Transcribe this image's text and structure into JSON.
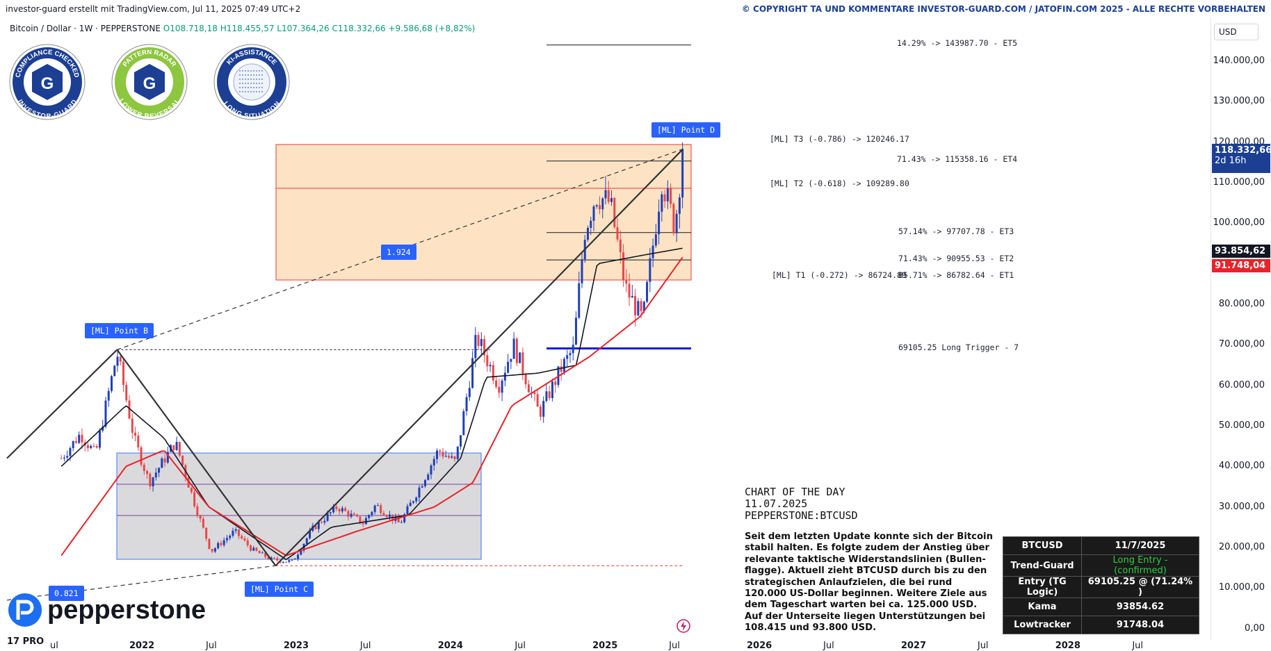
{
  "header": {
    "left": "investor-guard erstellt mit TradingView.com, Jul 11, 2025 07:49 UTC+2",
    "right": "© COPYRIGHT TA UND KOMMENTARE INVESTOR-GUARD.COM / JATOFIN.COM 2025 - ALLE RECHTE VORBEHALTEN"
  },
  "symbol": {
    "name": "Bitcoin / Dollar · 1W · PEPPERSTONE",
    "open": "O108.718,18",
    "high": "H118.455,57",
    "low": "L107.364,26",
    "close": "C118.332,66",
    "change": "+9.586,68 (+8,82%)"
  },
  "badges": [
    {
      "top": "COMPLIANCE CHECKED",
      "bottom": "INVESTOR-GUARD",
      "color": "#1c3f94"
    },
    {
      "top": "PATTERN RADAR",
      "bottom": "LOWER REVERSAL",
      "color": "#8dc63f"
    },
    {
      "top": "KI-ASSISTANCE",
      "bottom": "LONG SITUATION",
      "color": "#1c3f94"
    }
  ],
  "annotations": {
    "et5": "14.29% -> 143987.70 - ET5",
    "t3": "[ML] T3 (-0.786) -> 120246.17",
    "et4": "71.43% -> 115358.16 - ET4",
    "t2": "[ML] T2 (-0.618) -> 109289.80",
    "et3": "57.14% -> 97707.78 - ET3",
    "et2": "71.43% -> 90955.53 - ET2",
    "t1": "[ML] T1 (-0.272) -> 86724.89",
    "et1": "85.71% -> 86782.64 - ET1",
    "trigger": "69105.25  Long Trigger - 7",
    "point_b": "[ML] Point  B",
    "point_c": "[ML] Point  C",
    "point_d": "[ML] Point  D",
    "ratio1": "1.924",
    "ratio2": "0.821"
  },
  "cotd": {
    "title": "CHART OF THE DAY",
    "date": "11.07.2025",
    "ticker": "PEPPERSTONE:BTCUSD",
    "text": "Seit dem letzten Update konnte sich der Bitcoin stabil halten. Es folgte zudem der Anstieg über relevante taktische Widerstandslinien (Bullen-flagge). Aktuell zieht BTCUSD durch bis zu den strategischen Anlaufzielen, die bei rund 120.000 US-Dollar beginnen. Weitere Ziele aus dem Tageschart warten bei ca. 125.000 USD. Auf der Unterseite liegen Unterstützungen bei 108.415 und 93.800 USD."
  },
  "table": [
    [
      "BTCUSD",
      "11/7/2025"
    ],
    [
      "Trend-Guard",
      "Long Entry - (confirmed)"
    ],
    [
      "Entry (TG Logic)",
      "69105.25 @ (71.24% )"
    ],
    [
      "Kama",
      "93854.62"
    ],
    [
      "Lowtracker",
      "91748.04"
    ]
  ],
  "y_axis": {
    "currency": "USD",
    "labels": [
      "140.000,00",
      "130.000,00",
      "120.000,00",
      "110.000,00",
      "100.000,00",
      "90.000,00",
      "80.000,00",
      "70.000,00",
      "60.000,00",
      "50.000,00",
      "40.000,00",
      "30.000,00",
      "20.000,00",
      "10.000,00",
      "0,00"
    ],
    "price_flag": "118.332,66",
    "countdown": "2d 16h",
    "kama_flag": "93.854,62",
    "low_flag": "91.748,04"
  },
  "x_axis": {
    "labels": [
      "ul",
      "2022",
      "Jul",
      "2023",
      "Jul",
      "2024",
      "Jul",
      "2025",
      "Jul",
      "2026",
      "Jul",
      "2027",
      "Jul",
      "2028",
      "Jul"
    ]
  },
  "brand": {
    "pepperstone": "pepperstone",
    "tv": "17 PRO"
  },
  "colors": {
    "up": "#1f3fb8",
    "down": "#e8474b",
    "kama": "#131722",
    "lowtracker": "#e8232a",
    "target_box": "#fde3c4",
    "range_box": "#d6d6d9"
  },
  "chart_data": {
    "type": "candlestick",
    "title": "Bitcoin / Dollar · 1W · PEPPERSTONE",
    "ylim": [
      0,
      150000
    ],
    "x_range": [
      "2021-07",
      "2028-10"
    ],
    "ohlc_last": {
      "open": 108718.18,
      "high": 118455.57,
      "low": 107364.26,
      "close": 118332.66
    },
    "price_path": [
      [
        "2021-07-01",
        42000
      ],
      [
        "2021-08-15",
        48000
      ],
      [
        "2021-09-20",
        43000
      ],
      [
        "2021-11-10",
        68000
      ],
      [
        "2021-12-20",
        47000
      ],
      [
        "2022-01-25",
        36000
      ],
      [
        "2022-03-28",
        46000
      ],
      [
        "2022-05-15",
        30000
      ],
      [
        "2022-06-20",
        19000
      ],
      [
        "2022-08-15",
        24000
      ],
      [
        "2022-09-25",
        19500
      ],
      [
        "2022-11-10",
        17000
      ],
      [
        "2022-12-30",
        16500
      ],
      [
        "2023-02-15",
        24500
      ],
      [
        "2023-04-15",
        30000
      ],
      [
        "2023-06-15",
        26000
      ],
      [
        "2023-07-15",
        30500
      ],
      [
        "2023-09-10",
        25800
      ],
      [
        "2023-10-25",
        34500
      ],
      [
        "2023-12-10",
        44000
      ],
      [
        "2024-01-20",
        41000
      ],
      [
        "2024-03-10",
        72000
      ],
      [
        "2024-05-01",
        60000
      ],
      [
        "2024-06-05",
        70000
      ],
      [
        "2024-08-05",
        53000
      ],
      [
        "2024-09-25",
        64000
      ],
      [
        "2024-10-25",
        69000
      ],
      [
        "2024-11-20",
        98000
      ],
      [
        "2024-12-17",
        107000
      ],
      [
        "2025-01-20",
        105000
      ],
      [
        "2025-02-25",
        84000
      ],
      [
        "2025-04-07",
        76000
      ],
      [
        "2025-05-22",
        111000
      ],
      [
        "2025-06-22",
        99000
      ],
      [
        "2025-07-11",
        118332.66
      ]
    ],
    "kama": [
      [
        "2021-07-01",
        40000
      ],
      [
        "2021-12-01",
        55000
      ],
      [
        "2022-03-01",
        47000
      ],
      [
        "2022-06-15",
        30000
      ],
      [
        "2022-12-15",
        17000
      ],
      [
        "2023-04-01",
        25000
      ],
      [
        "2023-10-01",
        28000
      ],
      [
        "2024-02-01",
        42000
      ],
      [
        "2024-04-01",
        62000
      ],
      [
        "2024-08-01",
        63000
      ],
      [
        "2024-11-01",
        65000
      ],
      [
        "2024-12-20",
        90000
      ],
      [
        "2025-04-01",
        92000
      ],
      [
        "2025-07-11",
        93854.62
      ]
    ],
    "lowtracker": [
      [
        "2021-07-01",
        18000
      ],
      [
        "2021-12-01",
        40000
      ],
      [
        "2022-03-01",
        44000
      ],
      [
        "2022-06-15",
        30000
      ],
      [
        "2022-12-15",
        18000
      ],
      [
        "2023-06-01",
        24000
      ],
      [
        "2023-12-01",
        30000
      ],
      [
        "2024-03-01",
        36000
      ],
      [
        "2024-06-01",
        55000
      ],
      [
        "2024-12-01",
        67000
      ],
      [
        "2025-04-01",
        77000
      ],
      [
        "2025-07-11",
        91748.04
      ]
    ],
    "levels": [
      {
        "label": "ET5",
        "value": 143987.7
      },
      {
        "label": "T3",
        "value": 120246.17
      },
      {
        "label": "ET4",
        "value": 115358.16
      },
      {
        "label": "T2",
        "value": 109289.8
      },
      {
        "label": "ET3",
        "value": 97707.78
      },
      {
        "label": "ET2",
        "value": 90955.53
      },
      {
        "label": "T1",
        "value": 86724.89
      },
      {
        "label": "ET1",
        "value": 86782.64
      },
      {
        "label": "Long Trigger",
        "value": 69105.25
      }
    ],
    "ml_points": [
      {
        "name": "B",
        "date": "2021-11-10",
        "value": 68800
      },
      {
        "name": "C",
        "date": "2022-11-20",
        "value": 15500
      },
      {
        "name": "D",
        "date": "2025-07-11",
        "value": 118300
      }
    ]
  }
}
